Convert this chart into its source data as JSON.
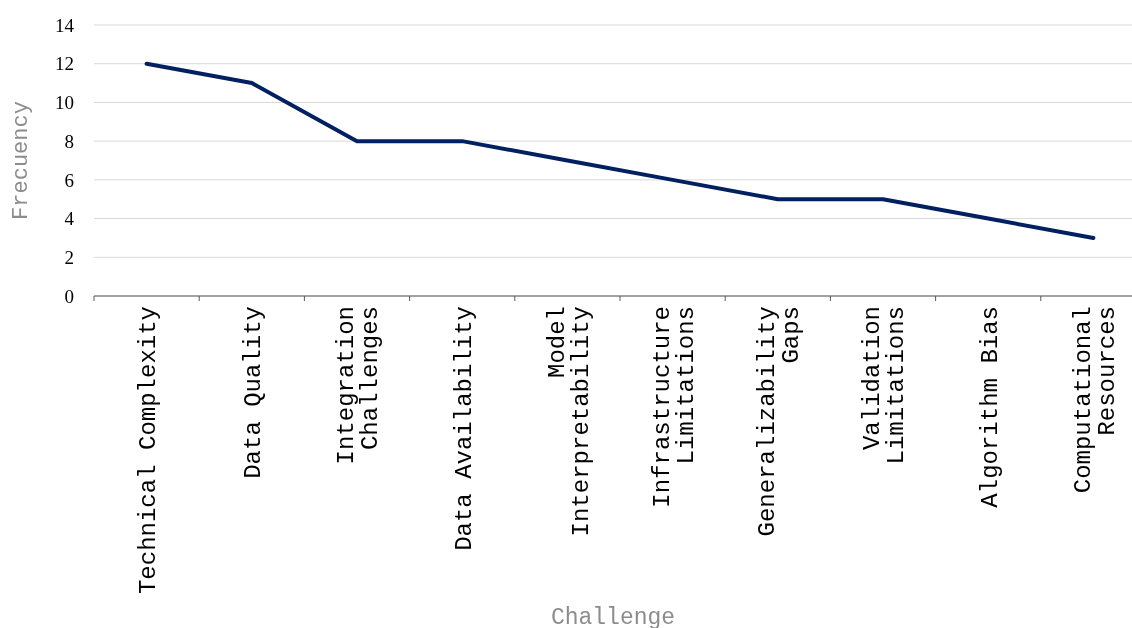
{
  "chart_data": {
    "type": "line",
    "xlabel": "Challenge",
    "ylabel": "Frecuency",
    "categories": [
      "Technical Complexity",
      "Data Quality",
      "Integration Challenges",
      "Data Availability",
      "Model Interpretability",
      "Infrastructure Limitations",
      "Generalizability Gaps",
      "Validation Limitations",
      "Algorithm Bias",
      "Computational Resources"
    ],
    "series": [
      {
        "color": "#002060",
        "values": [
          12,
          11,
          8,
          8,
          7,
          6,
          5,
          5,
          4,
          3
        ]
      }
    ],
    "ylim": [
      0,
      14
    ],
    "yticks": [
      0,
      2,
      4,
      6,
      8,
      10,
      12,
      14
    ],
    "grid": "y",
    "marker": "none",
    "line_style": "solid"
  }
}
